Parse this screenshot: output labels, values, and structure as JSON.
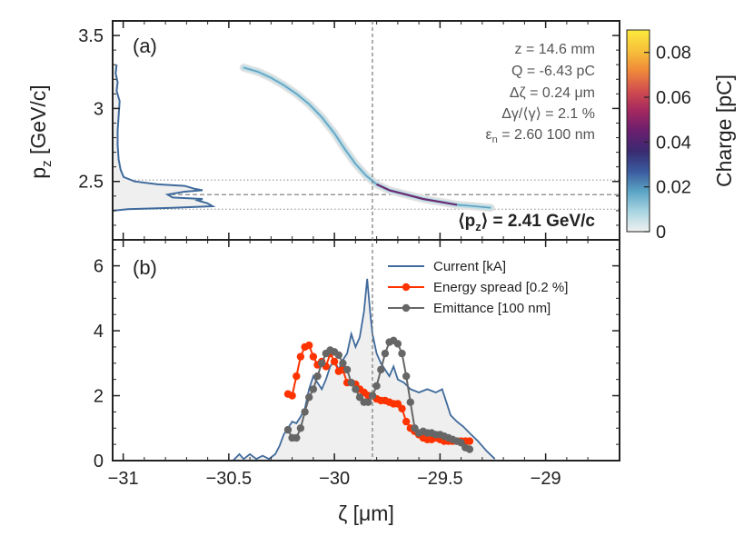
{
  "chart_data": {
    "type": "composite",
    "panel_a": {
      "label": "(a)",
      "ylabel": "p",
      "ylabel_sub": "z",
      "ylabel_unit": "[GeV/c]",
      "ylim": [
        2.1,
        3.6
      ],
      "yticks": [
        2.5,
        3,
        3.5
      ],
      "ytick_labels": [
        "2.5",
        "3",
        "3.5"
      ],
      "annotations": [
        {
          "prefix": "z =",
          "value": "14.6 mm"
        },
        {
          "prefix": "Q =",
          "value": "-6.43 pC"
        },
        {
          "prefix": "Δζ =",
          "value": "0.24 μm"
        },
        {
          "prefix": "Δγ/⟨γ⟩ =",
          "value": "2.1 %"
        },
        {
          "prefix": "ε",
          "sub": "n",
          "eq": " =",
          "value": "2.60 100 nm"
        }
      ],
      "mean_label_prefix": "⟨p",
      "mean_label_sub": "z",
      "mean_label_suffix": "⟩ =",
      "mean_value": "2.41 GeV/c",
      "mean_pz": 2.41,
      "band": [
        2.31,
        2.51
      ],
      "phase_space": [
        [
          -30.43,
          3.28
        ],
        [
          -30.36,
          3.25
        ],
        [
          -30.3,
          3.21
        ],
        [
          -30.24,
          3.16
        ],
        [
          -30.18,
          3.1
        ],
        [
          -30.12,
          3.03
        ],
        [
          -30.06,
          2.94
        ],
        [
          -30.0,
          2.83
        ],
        [
          -29.95,
          2.72
        ],
        [
          -29.9,
          2.62
        ],
        [
          -29.85,
          2.54
        ],
        [
          -29.8,
          2.48
        ],
        [
          -29.74,
          2.44
        ],
        [
          -29.66,
          2.41
        ],
        [
          -29.58,
          2.38
        ],
        [
          -29.5,
          2.36
        ],
        [
          -29.42,
          2.34
        ],
        [
          -29.34,
          2.33
        ],
        [
          -29.26,
          2.32
        ]
      ],
      "projection": [
        [
          2.3,
          0.0
        ],
        [
          2.31,
          0.15
        ],
        [
          2.32,
          0.6
        ],
        [
          2.33,
          1.0
        ],
        [
          2.35,
          0.95
        ],
        [
          2.37,
          0.85
        ],
        [
          2.38,
          0.9
        ],
        [
          2.39,
          0.6
        ],
        [
          2.41,
          0.55
        ],
        [
          2.43,
          0.72
        ],
        [
          2.44,
          0.9
        ],
        [
          2.45,
          0.82
        ],
        [
          2.47,
          0.72
        ],
        [
          2.48,
          0.45
        ],
        [
          2.5,
          0.22
        ],
        [
          2.53,
          0.11
        ],
        [
          2.58,
          0.08
        ],
        [
          2.65,
          0.06
        ],
        [
          2.75,
          0.05
        ],
        [
          2.85,
          0.05
        ],
        [
          2.95,
          0.06
        ],
        [
          3.05,
          0.07
        ],
        [
          3.12,
          0.04
        ],
        [
          3.18,
          0.05
        ],
        [
          3.24,
          0.03
        ],
        [
          3.3,
          0.04
        ]
      ]
    },
    "panel_b": {
      "label": "(b)",
      "ylim": [
        0,
        6.8
      ],
      "yticks": [
        0,
        2,
        4,
        6
      ],
      "ytick_labels": [
        "0",
        "2",
        "4",
        "6"
      ],
      "series": [
        {
          "name": "Current [kA]",
          "color": "#3f6a9c",
          "points": [
            [
              -30.48,
              0.0
            ],
            [
              -30.45,
              0.2
            ],
            [
              -30.43,
              0.05
            ],
            [
              -30.4,
              0.2
            ],
            [
              -30.37,
              0.05
            ],
            [
              -30.34,
              0.15
            ],
            [
              -30.31,
              0.05
            ],
            [
              -30.28,
              0.2
            ],
            [
              -30.26,
              0.45
            ],
            [
              -30.24,
              0.8
            ],
            [
              -30.22,
              1.0
            ],
            [
              -30.2,
              1.2
            ],
            [
              -30.18,
              1.15
            ],
            [
              -30.16,
              1.35
            ],
            [
              -30.14,
              1.6
            ],
            [
              -30.12,
              2.2
            ],
            [
              -30.1,
              2.6
            ],
            [
              -30.08,
              2.4
            ],
            [
              -30.06,
              2.2
            ],
            [
              -30.04,
              2.5
            ],
            [
              -30.02,
              2.9
            ],
            [
              -30.0,
              3.1
            ],
            [
              -29.98,
              2.8
            ],
            [
              -29.96,
              3.1
            ],
            [
              -29.94,
              3.3
            ],
            [
              -29.92,
              3.9
            ],
            [
              -29.9,
              3.5
            ],
            [
              -29.88,
              3.8
            ],
            [
              -29.86,
              4.6
            ],
            [
              -29.845,
              5.6
            ],
            [
              -29.83,
              4.5
            ],
            [
              -29.82,
              3.9
            ],
            [
              -29.8,
              3.3
            ],
            [
              -29.78,
              3.0
            ],
            [
              -29.76,
              2.8
            ],
            [
              -29.74,
              2.6
            ],
            [
              -29.72,
              2.9
            ],
            [
              -29.7,
              2.5
            ],
            [
              -29.67,
              2.4
            ],
            [
              -29.64,
              2.2
            ],
            [
              -29.6,
              2.1
            ],
            [
              -29.56,
              2.2
            ],
            [
              -29.52,
              2.1
            ],
            [
              -29.49,
              2.2
            ],
            [
              -29.47,
              1.8
            ],
            [
              -29.45,
              1.4
            ],
            [
              -29.42,
              1.2
            ],
            [
              -29.39,
              1.05
            ],
            [
              -29.36,
              0.85
            ],
            [
              -29.32,
              0.6
            ],
            [
              -29.28,
              0.3
            ],
            [
              -29.24,
              0.05
            ]
          ]
        },
        {
          "name": "Energy spread [0.2 %]",
          "color": "#ff3300",
          "points": [
            [
              -30.22,
              2.05
            ],
            [
              -30.2,
              2.0
            ],
            [
              -30.18,
              2.6
            ],
            [
              -30.16,
              3.2
            ],
            [
              -30.14,
              3.5
            ],
            [
              -30.12,
              3.55
            ],
            [
              -30.1,
              3.2
            ],
            [
              -30.08,
              2.95
            ],
            [
              -30.06,
              3.05
            ],
            [
              -30.04,
              2.9
            ],
            [
              -30.02,
              3.3
            ],
            [
              -30.0,
              3.05
            ],
            [
              -29.98,
              2.75
            ],
            [
              -29.96,
              2.8
            ],
            [
              -29.94,
              2.4
            ],
            [
              -29.92,
              2.4
            ],
            [
              -29.9,
              2.35
            ],
            [
              -29.88,
              2.2
            ],
            [
              -29.86,
              2.1
            ],
            [
              -29.84,
              2.0
            ],
            [
              -29.82,
              2.0
            ],
            [
              -29.8,
              1.9
            ],
            [
              -29.78,
              1.85
            ],
            [
              -29.76,
              1.85
            ],
            [
              -29.74,
              1.8
            ],
            [
              -29.72,
              1.75
            ],
            [
              -29.7,
              1.75
            ],
            [
              -29.68,
              1.6
            ],
            [
              -29.66,
              1.2
            ],
            [
              -29.64,
              1.0
            ],
            [
              -29.62,
              0.9
            ],
            [
              -29.6,
              0.8
            ],
            [
              -29.58,
              0.7
            ],
            [
              -29.56,
              0.65
            ],
            [
              -29.54,
              0.65
            ],
            [
              -29.52,
              0.7
            ],
            [
              -29.5,
              0.65
            ],
            [
              -29.48,
              0.6
            ],
            [
              -29.46,
              0.6
            ],
            [
              -29.44,
              0.6
            ],
            [
              -29.42,
              0.6
            ],
            [
              -29.4,
              0.6
            ],
            [
              -29.38,
              0.6
            ],
            [
              -29.36,
              0.6
            ]
          ]
        },
        {
          "name": "Emittance [100 nm]",
          "color": "#666666",
          "points": [
            [
              -30.22,
              0.95
            ],
            [
              -30.2,
              0.7
            ],
            [
              -30.18,
              0.7
            ],
            [
              -30.16,
              1.0
            ],
            [
              -30.14,
              1.5
            ],
            [
              -30.12,
              1.95
            ],
            [
              -30.1,
              2.2
            ],
            [
              -30.08,
              2.6
            ],
            [
              -30.06,
              3.0
            ],
            [
              -30.04,
              3.3
            ],
            [
              -30.02,
              3.4
            ],
            [
              -30.0,
              3.35
            ],
            [
              -29.98,
              3.25
            ],
            [
              -29.96,
              3.0
            ],
            [
              -29.94,
              2.8
            ],
            [
              -29.92,
              2.4
            ],
            [
              -29.9,
              2.2
            ],
            [
              -29.88,
              1.95
            ],
            [
              -29.86,
              1.8
            ],
            [
              -29.84,
              1.8
            ],
            [
              -29.82,
              2.0
            ],
            [
              -29.8,
              2.3
            ],
            [
              -29.78,
              2.8
            ],
            [
              -29.76,
              3.3
            ],
            [
              -29.74,
              3.65
            ],
            [
              -29.72,
              3.7
            ],
            [
              -29.7,
              3.6
            ],
            [
              -29.68,
              3.3
            ],
            [
              -29.66,
              2.6
            ],
            [
              -29.64,
              1.8
            ],
            [
              -29.62,
              1.0
            ],
            [
              -29.6,
              0.85
            ],
            [
              -29.58,
              0.9
            ],
            [
              -29.56,
              0.85
            ],
            [
              -29.54,
              0.85
            ],
            [
              -29.52,
              0.8
            ],
            [
              -29.5,
              0.8
            ],
            [
              -29.48,
              0.75
            ],
            [
              -29.46,
              0.7
            ],
            [
              -29.44,
              0.65
            ],
            [
              -29.42,
              0.6
            ],
            [
              -29.4,
              0.55
            ],
            [
              -29.38,
              0.4
            ],
            [
              -29.36,
              0.35
            ]
          ]
        }
      ]
    },
    "xaxis": {
      "label": "ζ [μm]",
      "xlim": [
        -31.05,
        -28.65
      ],
      "ticks": [
        -31,
        -30.5,
        -30,
        -29.5,
        -29
      ],
      "tick_labels": [
        "−31",
        "−30.5",
        "−30",
        "−29.5",
        "−29"
      ],
      "vline": -29.82
    },
    "colorbar": {
      "label": "Charge [pC]",
      "range": [
        0,
        0.09
      ],
      "ticks": [
        0,
        0.02,
        0.04,
        0.06,
        0.08
      ],
      "tick_labels": [
        "0",
        "0.02",
        "0.04",
        "0.06",
        "0.08"
      ],
      "colors": [
        "#f0f0f0",
        "#a9d5e1",
        "#5aa4c4",
        "#3b5a9e",
        "#3a2a70",
        "#6b1e6f",
        "#a3285f",
        "#d24e4e",
        "#f08a3a",
        "#f6c23a",
        "#fde93d"
      ]
    }
  }
}
